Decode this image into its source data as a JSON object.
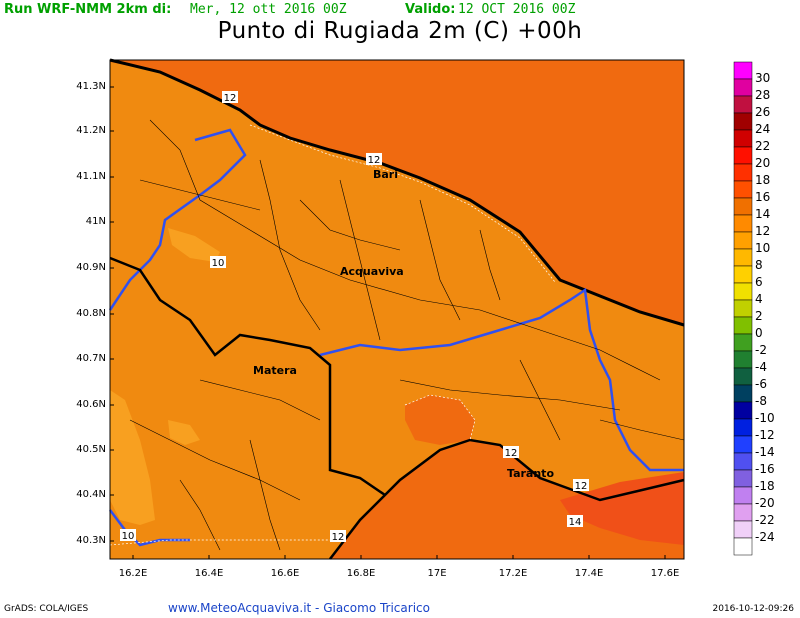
{
  "header": {
    "run_label": "Run WRF-NMM 2km di:",
    "run_value": "Mer, 12 ott 2016 00Z",
    "valid_label": "Valido:",
    "valid_value": "12 OCT 2016 00Z"
  },
  "title": "Punto di Rugiada 2m (C) +00h",
  "axes": {
    "y_ticks": [
      "41.3N",
      "41.2N",
      "41.1N",
      "41N",
      "40.9N",
      "40.8N",
      "40.7N",
      "40.6N",
      "40.5N",
      "40.4N",
      "40.3N"
    ],
    "x_ticks": [
      "16.2E",
      "16.4E",
      "16.6E",
      "16.8E",
      "17E",
      "17.2E",
      "17.4E",
      "17.6E"
    ]
  },
  "cities": [
    "Bari",
    "Acquaviva",
    "Matera",
    "Taranto"
  ],
  "contour_labels": [
    "12",
    "12",
    "10",
    "12",
    "12",
    "12",
    "14",
    "10"
  ],
  "colorbar": {
    "labels": [
      "30",
      "28",
      "26",
      "24",
      "22",
      "20",
      "18",
      "16",
      "14",
      "12",
      "10",
      "8",
      "6",
      "4",
      "2",
      "0",
      "-2",
      "-4",
      "-6",
      "-8",
      "-10",
      "-12",
      "-14",
      "-16",
      "-18",
      "-20",
      "-22",
      "-24"
    ],
    "colors": [
      "#ff00ff",
      "#e000a0",
      "#c01040",
      "#a00000",
      "#d00000",
      "#ff1000",
      "#ff3000",
      "#ff5000",
      "#f07000",
      "#ff8a00",
      "#ffa000",
      "#ffb800",
      "#ffd000",
      "#f0e000",
      "#c0d000",
      "#80c000",
      "#40a020",
      "#208030",
      "#106040",
      "#004060",
      "#0000a0",
      "#0020e0",
      "#2040ff",
      "#5050f0",
      "#8060e0",
      "#c080f0",
      "#e0a0f0",
      "#f0d0f8",
      "#ffffff"
    ]
  },
  "footer": {
    "left": "GrADS: COLA/IGES",
    "middle": "www.MeteoAcquaviva.it  -  Giacomo Tricarico",
    "right": "2016-10-12-09:26"
  }
}
